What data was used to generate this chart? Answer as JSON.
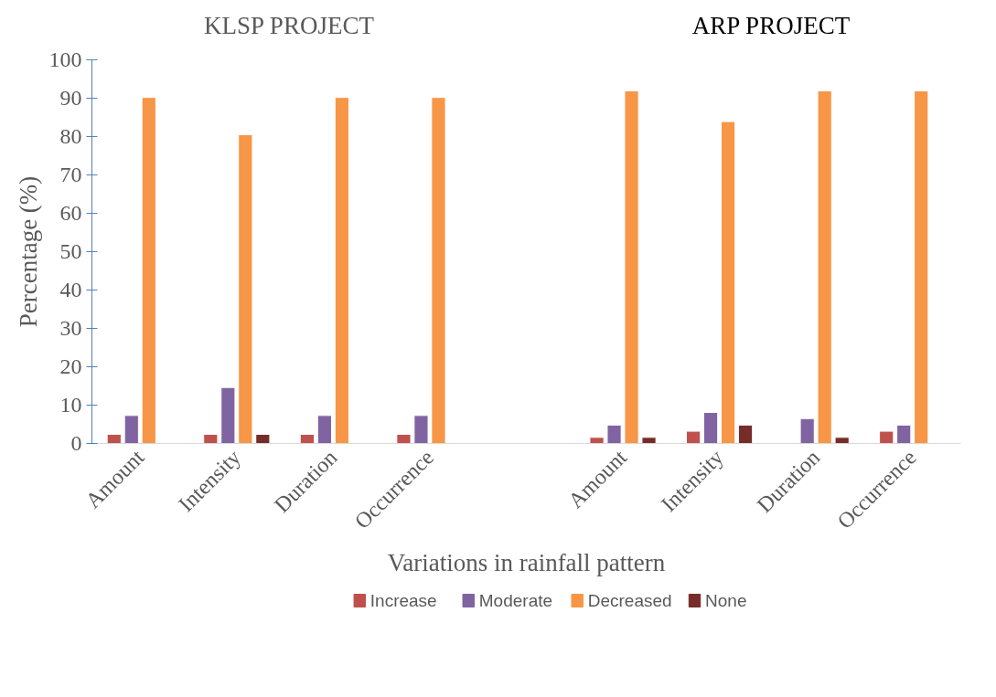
{
  "chart_data": {
    "type": "bar",
    "xlabel": "Variations in rainfall pattern",
    "ylabel": "Percentage (%)",
    "annotations": [
      "KLSP PROJECT",
      "ARP PROJECT"
    ],
    "categories": [
      "Amount",
      "Intensity",
      "Duration",
      "Occurrence",
      null,
      "Amount",
      "Intensity",
      "Duration",
      "Occurrence"
    ],
    "series": [
      {
        "name": "Increase",
        "color": "#c0504d",
        "values": [
          2.4,
          2.4,
          2.4,
          2.4,
          null,
          1.6,
          3.2,
          null,
          3.2
        ]
      },
      {
        "name": "Moderate",
        "color": "#8064a2",
        "values": [
          7.3,
          14.6,
          7.3,
          7.3,
          null,
          4.8,
          8.1,
          6.5,
          4.8
        ]
      },
      {
        "name": "Decreased",
        "color": "#f79646",
        "values": [
          90.2,
          80.5,
          90.2,
          90.2,
          null,
          91.9,
          83.9,
          91.9,
          91.9
        ]
      },
      {
        "name": "None",
        "color": "#772c2a",
        "values": [
          null,
          2.4,
          null,
          null,
          null,
          1.6,
          4.8,
          1.6,
          null
        ]
      }
    ],
    "ylim": [
      0,
      100
    ],
    "yticks": [
      0,
      10,
      20,
      30,
      40,
      50,
      60,
      70,
      80,
      90,
      100
    ],
    "grid": false,
    "legend": "bottom"
  }
}
